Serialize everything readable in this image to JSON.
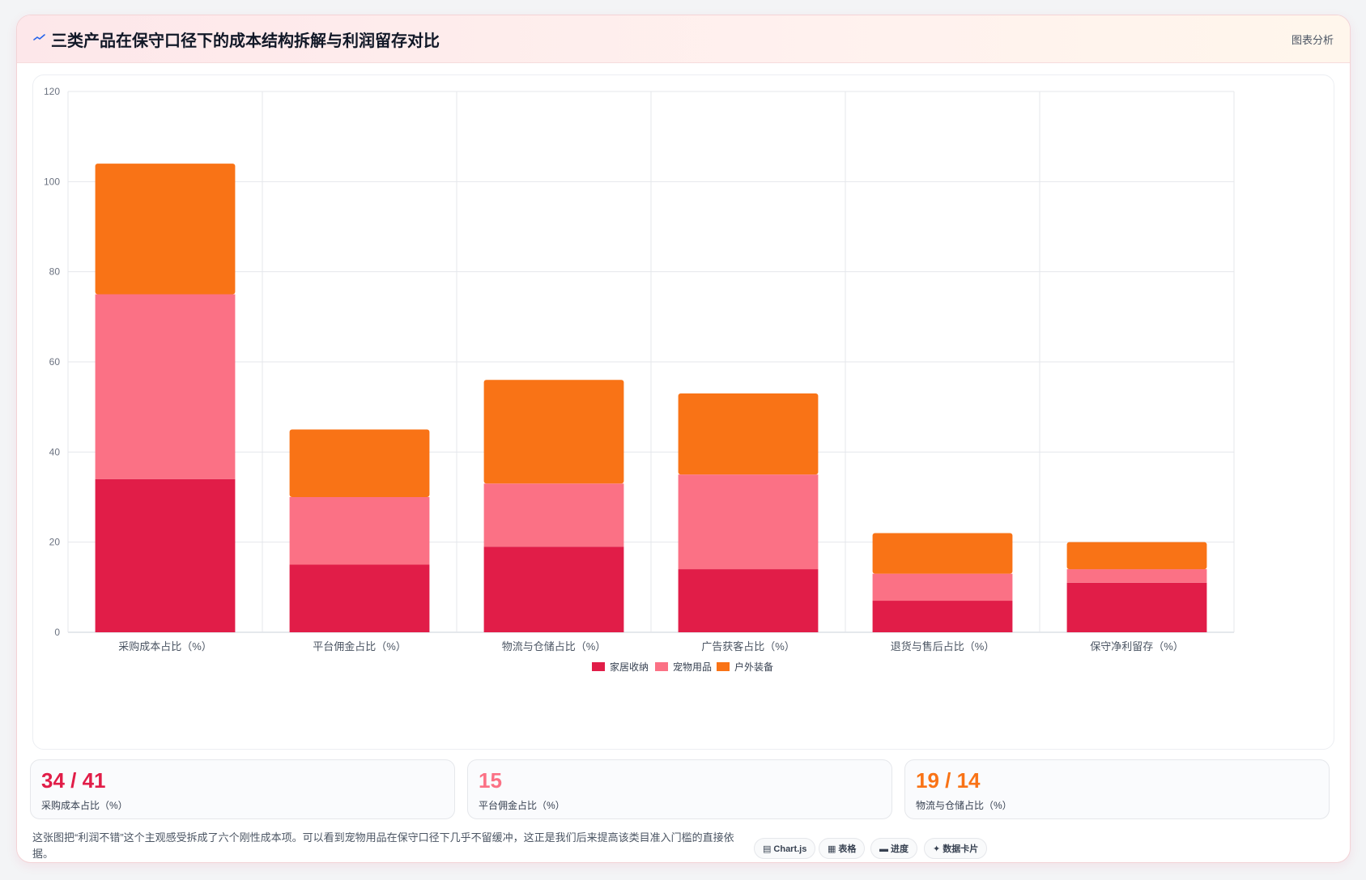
{
  "header": {
    "title": "三类产品在保守口径下的成本结构拆解与利润留存对比",
    "badge": "图表分析"
  },
  "colors": {
    "accent": "#e11d48",
    "pink": "#fb7185",
    "orange": "#f97316"
  },
  "chart_data": {
    "type": "bar",
    "stacked": true,
    "categories": [
      "采购成本占比（%）",
      "平台佣金占比（%）",
      "物流与仓储占比（%）",
      "广告获客占比（%）",
      "退货与售后占比（%）",
      "保守净利留存（%）"
    ],
    "series": [
      {
        "name": "家居收纳",
        "color": "#e11d48",
        "values": [
          34,
          15,
          19,
          14,
          7,
          11
        ]
      },
      {
        "name": "宠物用品",
        "color": "#fb7185",
        "values": [
          41,
          15,
          14,
          21,
          6,
          3
        ]
      },
      {
        "name": "户外装备",
        "color": "#f97316",
        "values": [
          29,
          15,
          23,
          18,
          9,
          6
        ]
      }
    ],
    "ylim": [
      0,
      120
    ],
    "yticks": [
      0,
      20,
      40,
      60,
      80,
      100,
      120
    ],
    "grid": true,
    "legend": "bottom"
  },
  "kpis": [
    {
      "value": "34 / 41",
      "label": "采购成本占比（%）",
      "color": "#e11d48"
    },
    {
      "value": "15",
      "label": "平台佣金占比（%）",
      "color": "#fb7185"
    },
    {
      "value": "19 / 14",
      "label": "物流与仓储占比（%）",
      "color": "#f97316"
    }
  ],
  "note": "这张图把“利润不错”这个主观感受拆成了六个刚性成本项。可以看到宠物用品在保守口径下几乎不留缓冲，这正是我们后来提高该类目准入门槛的直接依据。",
  "chips": [
    {
      "icon": "▤",
      "label": "Chart.js"
    },
    {
      "icon": "▦",
      "label": "表格"
    },
    {
      "icon": "▬",
      "label": "进度"
    },
    {
      "icon": "✦",
      "label": "数据卡片"
    }
  ]
}
